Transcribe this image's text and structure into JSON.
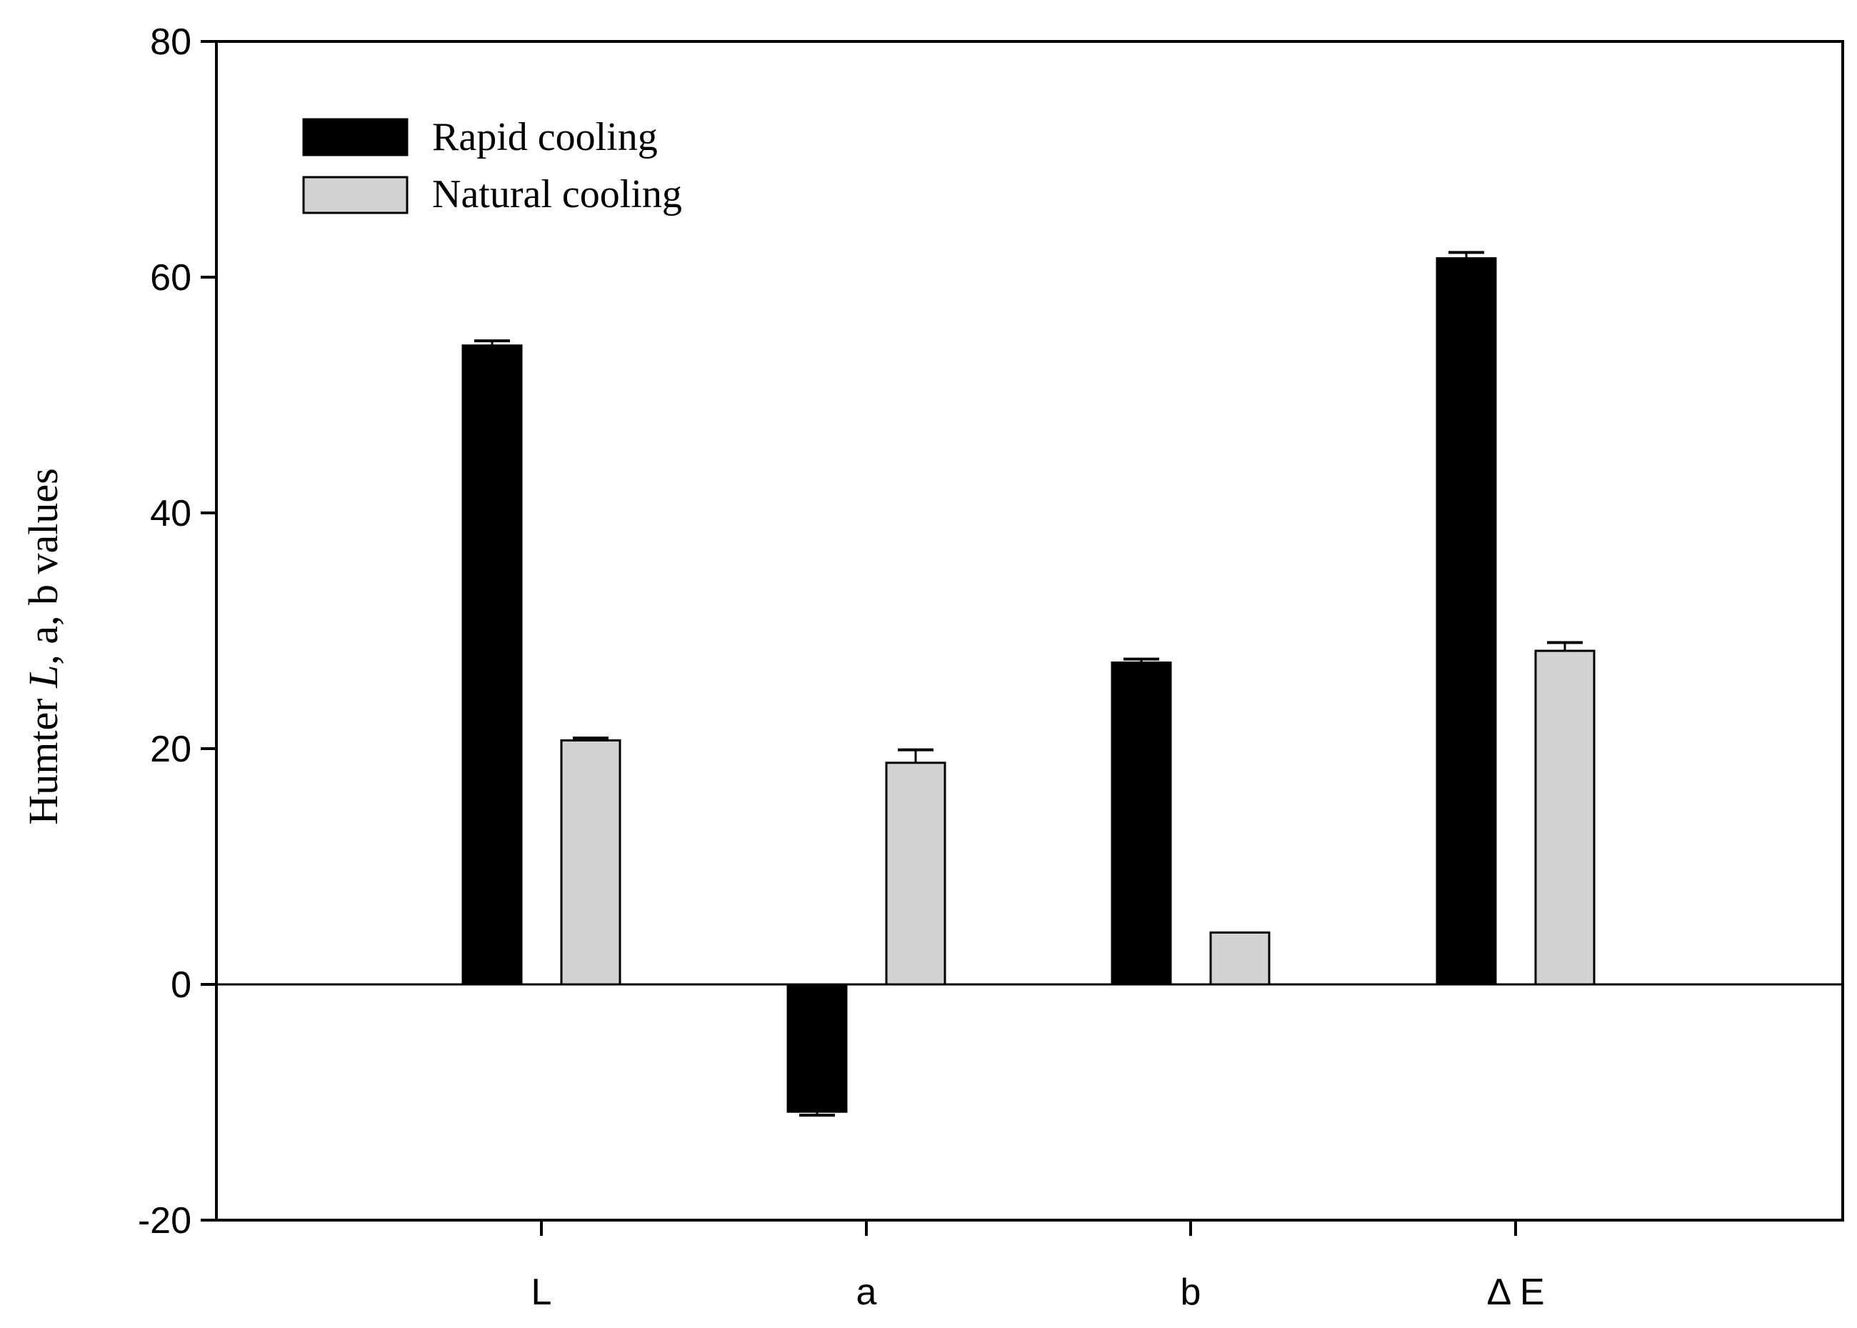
{
  "chart_data": {
    "type": "bar",
    "title": "",
    "xlabel": "",
    "ylabel_parts": [
      "Humter ",
      "L",
      ", a, b values"
    ],
    "categories": [
      "L",
      "a",
      "b",
      "Δ  E"
    ],
    "series": [
      {
        "name": "Rapid cooling",
        "color": "#000000",
        "values": [
          54.2,
          -10.8,
          27.3,
          61.6
        ],
        "errors": [
          0.4,
          0.3,
          0.3,
          0.5
        ]
      },
      {
        "name": "Natural cooling",
        "color": "#d3d3d3",
        "values": [
          20.7,
          18.8,
          4.4,
          28.3
        ],
        "errors": [
          0.2,
          1.1,
          0.0,
          0.7
        ]
      }
    ],
    "ylim": [
      -20,
      80
    ],
    "yticks": [
      -20,
      0,
      20,
      40,
      60,
      80
    ],
    "legend_position": "top-left",
    "grid": false
  }
}
